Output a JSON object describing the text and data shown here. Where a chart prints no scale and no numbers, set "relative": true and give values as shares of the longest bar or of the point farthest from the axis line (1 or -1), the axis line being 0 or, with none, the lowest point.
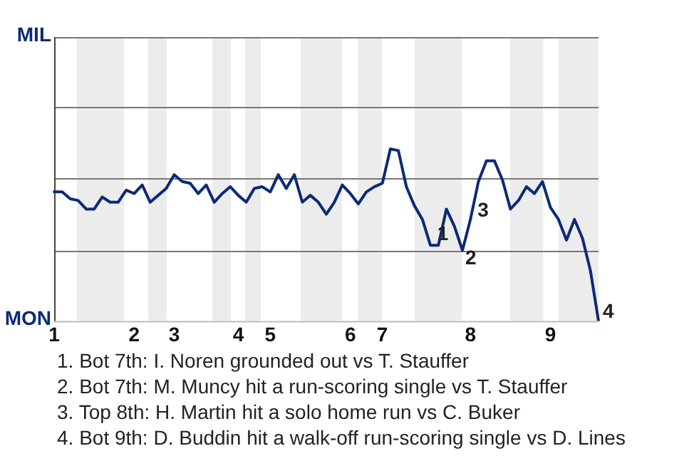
{
  "chart_data": {
    "type": "line",
    "relative": true,
    "legend": false,
    "ref_lines": [
      {
        "axis": "y",
        "value": 0.41,
        "color": "#777777"
      },
      {
        "axis": "y",
        "value": 0.83,
        "color": "#777777"
      },
      {
        "axis": "y",
        "value": 1.24,
        "color": "#777777"
      },
      {
        "axis": "y",
        "value": 1.65,
        "color": "#777777"
      }
    ],
    "marker": "none",
    "line_style": "solid",
    "categories": [
      "1",
      null,
      null,
      null,
      null,
      null,
      null,
      null,
      null,
      null,
      "2",
      null,
      null,
      null,
      null,
      "3",
      null,
      null,
      null,
      null,
      null,
      null,
      null,
      "4",
      null,
      null,
      null,
      "5",
      null,
      null,
      null,
      null,
      null,
      null,
      null,
      null,
      null,
      "6",
      null,
      null,
      null,
      "7",
      null,
      null,
      null,
      null,
      null,
      null,
      null,
      null,
      null,
      null,
      "8",
      null,
      null,
      null,
      null,
      null,
      null,
      null,
      null,
      null,
      "9",
      null,
      null,
      null,
      null,
      null,
      null
    ],
    "series": [
      {
        "color": "#0c2a78",
        "values": [
          0.75,
          0.75,
          0.71,
          0.7,
          0.65,
          0.65,
          0.72,
          0.69,
          0.69,
          0.76,
          0.74,
          0.79,
          0.69,
          0.73,
          0.77,
          0.85,
          0.81,
          0.8,
          0.74,
          0.79,
          0.69,
          0.74,
          0.78,
          0.73,
          0.69,
          0.77,
          0.78,
          0.75,
          0.85,
          0.77,
          0.85,
          0.69,
          0.73,
          0.69,
          0.62,
          0.69,
          0.79,
          0.74,
          0.68,
          0.75,
          0.78,
          0.8,
          1,
          0.99,
          0.78,
          0.67,
          0.59,
          0.44,
          0.44,
          0.65,
          0.55,
          0.41,
          0.59,
          0.81,
          0.93,
          0.93,
          0.82,
          0.65,
          0.7,
          0.78,
          0.74,
          0.81,
          0.66,
          0.59,
          0.47,
          0.59,
          0.48,
          0.29,
          0
        ]
      }
    ],
    "annotations": [
      "MIL",
      "MON",
      "1",
      "2",
      "3",
      "4",
      "1. Bot 7th: I. Noren grounded out vs T. Stauffer",
      "2. Bot 7th: M. Muncy hit a run-scoring single vs T. Stauffer",
      "3. Top 8th: H. Martin hit a solo home run vs C. Buker",
      "4. Bot 9th: D. Buddin hit a walk-off run-scoring single vs D. Lines"
    ]
  }
}
